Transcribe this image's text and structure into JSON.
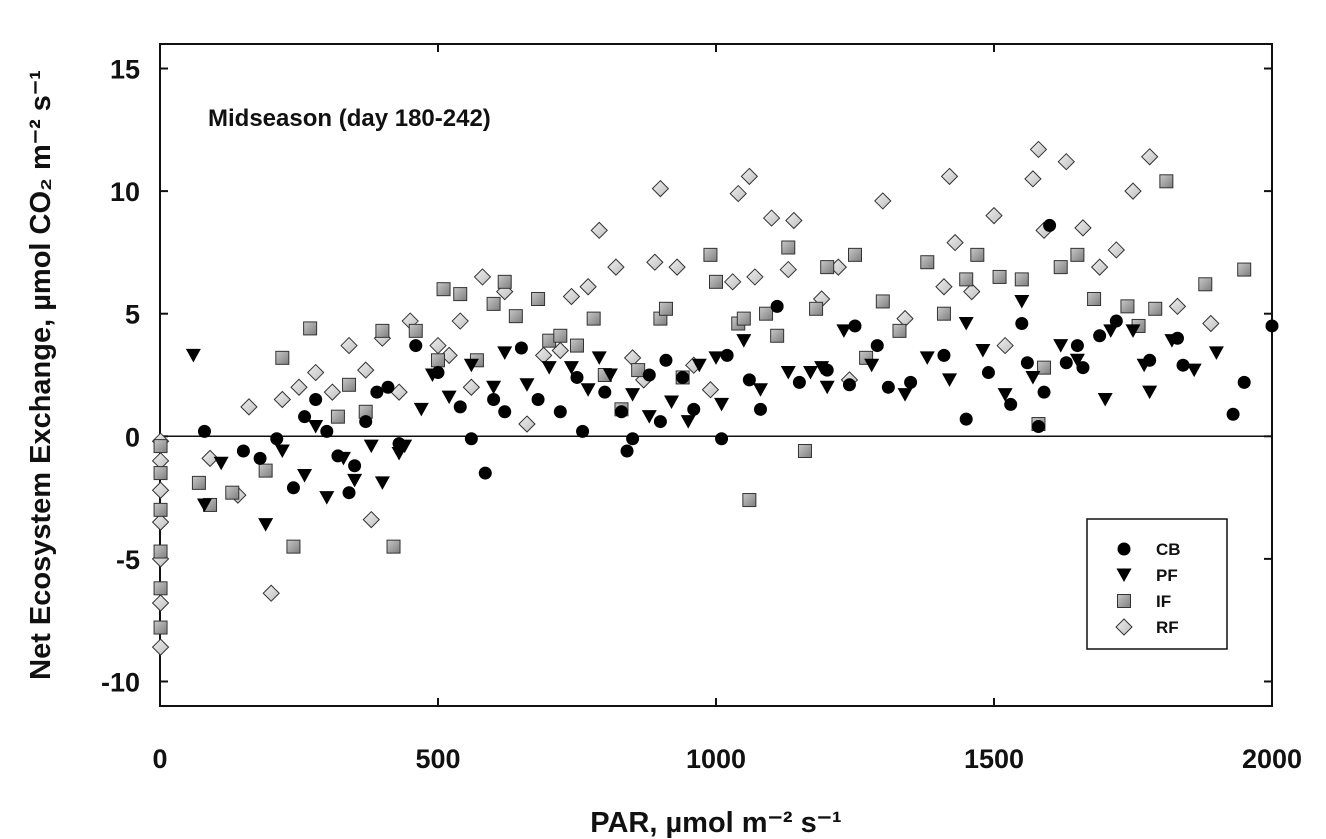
{
  "chart_data": {
    "type": "scatter",
    "title": "",
    "annotation": "Midseason (day 180-242)",
    "xlabel": "PAR, µmol m⁻² s⁻¹",
    "ylabel": "Net Ecosystem Exchange, µmol CO₂ m⁻² s⁻¹",
    "xlim": [
      0,
      2000
    ],
    "ylim": [
      -11,
      16
    ],
    "xticks": [
      0,
      500,
      1000,
      1500,
      2000
    ],
    "yticks": [
      -10,
      -5,
      0,
      5,
      10,
      15
    ],
    "xtick_labels": [
      "0",
      "500",
      "1000",
      "1500",
      "2000"
    ],
    "ytick_labels": [
      "-10",
      "-5",
      "0",
      "5",
      "10",
      "15"
    ],
    "zero_line": true,
    "grid": false,
    "legend_position": "bottom-right",
    "series": [
      {
        "name": "CB",
        "marker": "circle",
        "color": "#000000",
        "points": [
          [
            80,
            0.2
          ],
          [
            150,
            -0.6
          ],
          [
            180,
            -0.9
          ],
          [
            210,
            -0.1
          ],
          [
            240,
            -2.1
          ],
          [
            260,
            0.8
          ],
          [
            280,
            1.5
          ],
          [
            300,
            0.2
          ],
          [
            320,
            -0.8
          ],
          [
            340,
            -2.3
          ],
          [
            350,
            -1.2
          ],
          [
            370,
            0.6
          ],
          [
            390,
            1.8
          ],
          [
            410,
            2.0
          ],
          [
            430,
            -0.3
          ],
          [
            460,
            3.7
          ],
          [
            500,
            2.6
          ],
          [
            540,
            1.2
          ],
          [
            560,
            -0.1
          ],
          [
            585,
            -1.5
          ],
          [
            600,
            1.5
          ],
          [
            620,
            1.0
          ],
          [
            650,
            3.6
          ],
          [
            680,
            1.5
          ],
          [
            720,
            1.0
          ],
          [
            750,
            2.4
          ],
          [
            760,
            0.2
          ],
          [
            800,
            1.8
          ],
          [
            830,
            1.0
          ],
          [
            840,
            -0.6
          ],
          [
            850,
            -0.1
          ],
          [
            880,
            2.5
          ],
          [
            900,
            0.6
          ],
          [
            910,
            3.1
          ],
          [
            940,
            2.4
          ],
          [
            960,
            1.1
          ],
          [
            1010,
            -0.1
          ],
          [
            1020,
            3.3
          ],
          [
            1060,
            2.3
          ],
          [
            1080,
            1.1
          ],
          [
            1110,
            5.3
          ],
          [
            1150,
            2.2
          ],
          [
            1200,
            2.7
          ],
          [
            1240,
            2.1
          ],
          [
            1250,
            4.5
          ],
          [
            1290,
            3.7
          ],
          [
            1310,
            2.0
          ],
          [
            1350,
            2.2
          ],
          [
            1410,
            3.3
          ],
          [
            1450,
            0.7
          ],
          [
            1490,
            2.6
          ],
          [
            1530,
            1.3
          ],
          [
            1550,
            4.6
          ],
          [
            1560,
            3.0
          ],
          [
            1580,
            0.4
          ],
          [
            1590,
            1.8
          ],
          [
            1600,
            8.6
          ],
          [
            1630,
            3.0
          ],
          [
            1650,
            3.7
          ],
          [
            1660,
            2.8
          ],
          [
            1690,
            4.1
          ],
          [
            1720,
            4.7
          ],
          [
            1780,
            3.1
          ],
          [
            1830,
            4.0
          ],
          [
            1840,
            2.9
          ],
          [
            1930,
            0.9
          ],
          [
            1950,
            2.2
          ],
          [
            2000,
            4.5
          ]
        ]
      },
      {
        "name": "PF",
        "marker": "triangle-down",
        "color": "#000000",
        "points": [
          [
            60,
            3.3
          ],
          [
            80,
            -2.8
          ],
          [
            110,
            -1.1
          ],
          [
            190,
            -3.6
          ],
          [
            220,
            -0.6
          ],
          [
            260,
            -1.6
          ],
          [
            280,
            0.4
          ],
          [
            300,
            -2.5
          ],
          [
            330,
            -0.9
          ],
          [
            350,
            -1.8
          ],
          [
            380,
            -0.4
          ],
          [
            400,
            -1.9
          ],
          [
            430,
            -0.7
          ],
          [
            440,
            -0.4
          ],
          [
            470,
            1.1
          ],
          [
            490,
            2.5
          ],
          [
            520,
            1.6
          ],
          [
            560,
            2.9
          ],
          [
            600,
            2.0
          ],
          [
            620,
            3.4
          ],
          [
            660,
            2.1
          ],
          [
            700,
            2.8
          ],
          [
            740,
            2.8
          ],
          [
            770,
            1.9
          ],
          [
            790,
            3.2
          ],
          [
            810,
            2.5
          ],
          [
            850,
            1.7
          ],
          [
            880,
            0.8
          ],
          [
            920,
            1.4
          ],
          [
            950,
            0.6
          ],
          [
            970,
            2.9
          ],
          [
            1000,
            3.2
          ],
          [
            1010,
            1.3
          ],
          [
            1050,
            3.9
          ],
          [
            1080,
            1.9
          ],
          [
            1130,
            2.6
          ],
          [
            1170,
            2.6
          ],
          [
            1190,
            2.8
          ],
          [
            1200,
            2.0
          ],
          [
            1230,
            4.3
          ],
          [
            1280,
            2.9
          ],
          [
            1340,
            1.7
          ],
          [
            1380,
            3.2
          ],
          [
            1420,
            2.3
          ],
          [
            1450,
            4.6
          ],
          [
            1480,
            3.5
          ],
          [
            1520,
            1.7
          ],
          [
            1550,
            5.5
          ],
          [
            1570,
            2.4
          ],
          [
            1620,
            3.7
          ],
          [
            1650,
            3.1
          ],
          [
            1700,
            1.5
          ],
          [
            1710,
            4.3
          ],
          [
            1750,
            4.3
          ],
          [
            1770,
            2.9
          ],
          [
            1780,
            1.8
          ],
          [
            1820,
            3.9
          ],
          [
            1860,
            2.7
          ],
          [
            1900,
            3.4
          ]
        ]
      },
      {
        "name": "IF",
        "marker": "square",
        "color": "#9a9a9a",
        "points": [
          [
            1,
            -0.4
          ],
          [
            1,
            -1.5
          ],
          [
            1,
            -3.0
          ],
          [
            1,
            -4.7
          ],
          [
            1,
            -6.2
          ],
          [
            1,
            -7.8
          ],
          [
            70,
            -1.9
          ],
          [
            90,
            -2.8
          ],
          [
            130,
            -2.3
          ],
          [
            190,
            -1.4
          ],
          [
            220,
            3.2
          ],
          [
            240,
            -4.5
          ],
          [
            270,
            4.4
          ],
          [
            320,
            0.8
          ],
          [
            340,
            2.1
          ],
          [
            370,
            1.0
          ],
          [
            400,
            4.3
          ],
          [
            420,
            -4.5
          ],
          [
            460,
            4.3
          ],
          [
            500,
            3.1
          ],
          [
            510,
            6.0
          ],
          [
            540,
            5.8
          ],
          [
            570,
            3.1
          ],
          [
            600,
            5.4
          ],
          [
            620,
            6.3
          ],
          [
            640,
            4.9
          ],
          [
            680,
            5.6
          ],
          [
            700,
            3.9
          ],
          [
            720,
            4.1
          ],
          [
            750,
            3.7
          ],
          [
            780,
            4.8
          ],
          [
            800,
            2.5
          ],
          [
            830,
            1.1
          ],
          [
            860,
            2.7
          ],
          [
            900,
            4.8
          ],
          [
            910,
            5.2
          ],
          [
            940,
            2.4
          ],
          [
            990,
            7.4
          ],
          [
            1000,
            6.3
          ],
          [
            1040,
            4.6
          ],
          [
            1050,
            4.8
          ],
          [
            1060,
            -2.6
          ],
          [
            1090,
            5.0
          ],
          [
            1110,
            4.1
          ],
          [
            1130,
            7.7
          ],
          [
            1160,
            -0.6
          ],
          [
            1180,
            5.2
          ],
          [
            1200,
            6.9
          ],
          [
            1250,
            7.4
          ],
          [
            1270,
            3.2
          ],
          [
            1300,
            5.5
          ],
          [
            1330,
            4.3
          ],
          [
            1380,
            7.1
          ],
          [
            1410,
            5.0
          ],
          [
            1450,
            6.4
          ],
          [
            1470,
            7.4
          ],
          [
            1510,
            6.5
          ],
          [
            1550,
            6.4
          ],
          [
            1580,
            0.5
          ],
          [
            1590,
            2.8
          ],
          [
            1620,
            6.9
          ],
          [
            1650,
            7.4
          ],
          [
            1680,
            5.6
          ],
          [
            1740,
            5.3
          ],
          [
            1760,
            4.5
          ],
          [
            1790,
            5.2
          ],
          [
            1810,
            10.4
          ],
          [
            1880,
            6.2
          ],
          [
            1950,
            6.8
          ]
        ]
      },
      {
        "name": "RF",
        "marker": "diamond",
        "color": "#cfcfcf",
        "points": [
          [
            1,
            -0.2
          ],
          [
            1,
            -1.0
          ],
          [
            1,
            -2.2
          ],
          [
            1,
            -3.5
          ],
          [
            1,
            -5.0
          ],
          [
            1,
            -6.8
          ],
          [
            1,
            -8.6
          ],
          [
            90,
            -0.9
          ],
          [
            140,
            -2.4
          ],
          [
            160,
            1.2
          ],
          [
            200,
            -6.4
          ],
          [
            220,
            1.5
          ],
          [
            250,
            2.0
          ],
          [
            280,
            2.6
          ],
          [
            310,
            1.8
          ],
          [
            340,
            3.7
          ],
          [
            370,
            2.7
          ],
          [
            380,
            -3.4
          ],
          [
            400,
            4.0
          ],
          [
            430,
            1.8
          ],
          [
            450,
            4.7
          ],
          [
            500,
            3.7
          ],
          [
            520,
            3.3
          ],
          [
            540,
            4.7
          ],
          [
            560,
            2.0
          ],
          [
            580,
            6.5
          ],
          [
            620,
            5.9
          ],
          [
            660,
            0.5
          ],
          [
            690,
            3.3
          ],
          [
            720,
            3.5
          ],
          [
            740,
            5.7
          ],
          [
            770,
            6.1
          ],
          [
            790,
            8.4
          ],
          [
            820,
            6.9
          ],
          [
            850,
            3.2
          ],
          [
            870,
            2.3
          ],
          [
            890,
            7.1
          ],
          [
            900,
            10.1
          ],
          [
            930,
            6.9
          ],
          [
            960,
            2.9
          ],
          [
            990,
            1.9
          ],
          [
            1030,
            6.3
          ],
          [
            1040,
            9.9
          ],
          [
            1060,
            10.6
          ],
          [
            1070,
            6.5
          ],
          [
            1100,
            8.9
          ],
          [
            1130,
            6.8
          ],
          [
            1140,
            8.8
          ],
          [
            1190,
            5.6
          ],
          [
            1220,
            6.9
          ],
          [
            1240,
            2.3
          ],
          [
            1300,
            9.6
          ],
          [
            1340,
            4.8
          ],
          [
            1410,
            6.1
          ],
          [
            1420,
            10.6
          ],
          [
            1430,
            7.9
          ],
          [
            1460,
            5.9
          ],
          [
            1500,
            9.0
          ],
          [
            1520,
            3.7
          ],
          [
            1570,
            10.5
          ],
          [
            1580,
            11.7
          ],
          [
            1590,
            8.4
          ],
          [
            1630,
            11.2
          ],
          [
            1660,
            8.5
          ],
          [
            1690,
            6.9
          ],
          [
            1720,
            7.6
          ],
          [
            1750,
            10.0
          ],
          [
            1780,
            11.4
          ],
          [
            1830,
            5.3
          ],
          [
            1890,
            4.6
          ]
        ]
      }
    ]
  }
}
